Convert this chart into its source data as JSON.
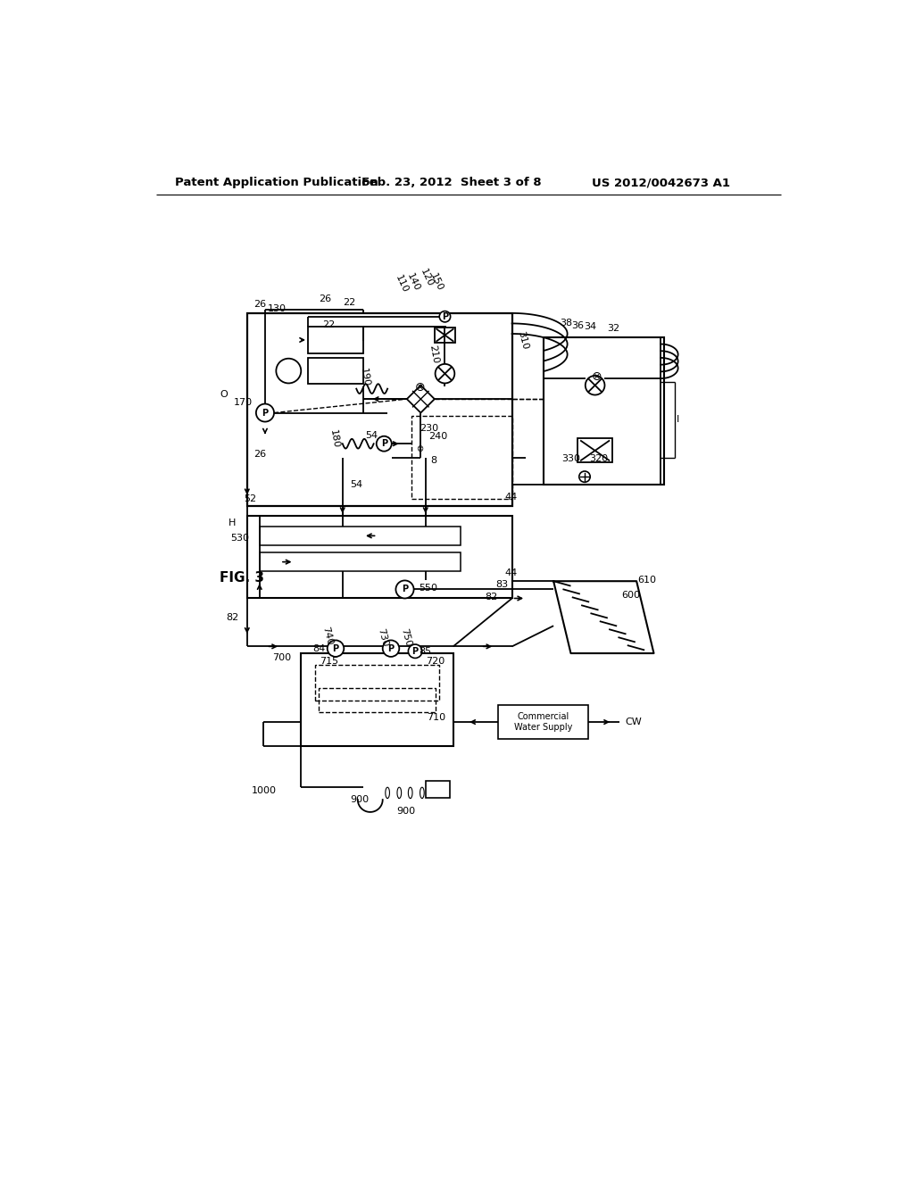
{
  "bg_color": "#ffffff",
  "header_left": "Patent Application Publication",
  "header_center": "Feb. 23, 2012  Sheet 3 of 8",
  "header_right": "US 2012/0042673 A1",
  "fig_label": "FIG. 3"
}
